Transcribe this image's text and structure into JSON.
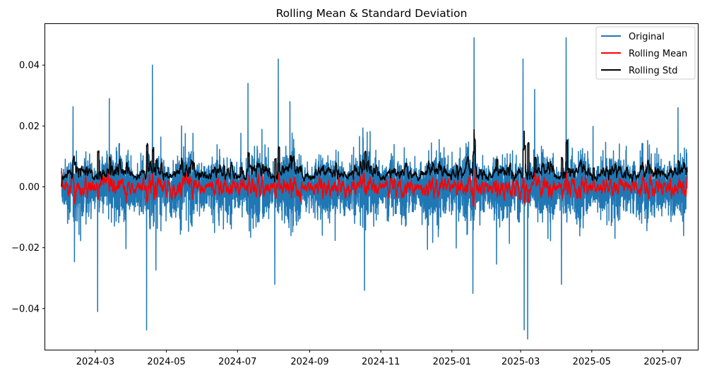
{
  "chart_data": {
    "type": "line",
    "title": "Rolling Mean & Standard Deviation",
    "xlabel": "",
    "ylabel": "",
    "x_range": [
      "2024-01-18",
      "2025-07-31"
    ],
    "x_data_range": [
      "2024-02-01",
      "2025-07-22"
    ],
    "xlim": [
      19740,
      20300
    ],
    "ylim": [
      -0.0535,
      0.0535
    ],
    "x_ticks": [
      {
        "label": "2024-03",
        "value": 19783
      },
      {
        "label": "2024-05",
        "value": 19844
      },
      {
        "label": "2024-07",
        "value": 19905
      },
      {
        "label": "2024-09",
        "value": 19967
      },
      {
        "label": "2024-11",
        "value": 20028
      },
      {
        "label": "2025-01",
        "value": 20089
      },
      {
        "label": "2025-03",
        "value": 20148
      },
      {
        "label": "2025-05",
        "value": 20209
      },
      {
        "label": "2025-07",
        "value": 20270
      }
    ],
    "y_ticks": [
      {
        "label": "0.04",
        "value": 0.04
      },
      {
        "label": "0.02",
        "value": 0.02
      },
      {
        "label": "0.00",
        "value": 0.0
      },
      {
        "label": "−0.02",
        "value": -0.02
      },
      {
        "label": "−0.04",
        "value": -0.04
      }
    ],
    "grid": false,
    "legend_position": "top-right",
    "series": [
      {
        "name": "Original",
        "color": "#1f77b4",
        "approx_amplitude": 0.008,
        "max_spike": 0.049,
        "min_spike": -0.05
      },
      {
        "name": "Rolling Mean",
        "color": "#ff0000",
        "approx_center": 0.0,
        "approx_amplitude": 0.003
      },
      {
        "name": "Rolling Std",
        "color": "#000000",
        "approx_center": 0.004,
        "approx_range": [
          0.0,
          0.024
        ]
      }
    ],
    "notable_spikes": [
      {
        "x": "2024-03-03",
        "y": -0.041
      },
      {
        "x": "2024-03-13",
        "y": 0.029
      },
      {
        "x": "2024-04-14",
        "y": -0.047
      },
      {
        "x": "2024-04-19",
        "y": 0.04
      },
      {
        "x": "2024-07-10",
        "y": 0.034
      },
      {
        "x": "2024-08-02",
        "y": -0.032
      },
      {
        "x": "2024-08-05",
        "y": 0.042
      },
      {
        "x": "2024-08-15",
        "y": 0.028
      },
      {
        "x": "2024-10-18",
        "y": -0.034
      },
      {
        "x": "2025-01-20",
        "y": 0.049
      },
      {
        "x": "2025-01-19",
        "y": -0.035
      },
      {
        "x": "2025-03-03",
        "y": 0.042
      },
      {
        "x": "2025-03-04",
        "y": -0.047
      },
      {
        "x": "2025-03-07",
        "y": -0.05
      },
      {
        "x": "2025-03-13",
        "y": 0.032
      },
      {
        "x": "2025-04-09",
        "y": 0.049
      },
      {
        "x": "2025-04-05",
        "y": -0.032
      },
      {
        "x": "2025-07-14",
        "y": 0.026
      }
    ]
  }
}
